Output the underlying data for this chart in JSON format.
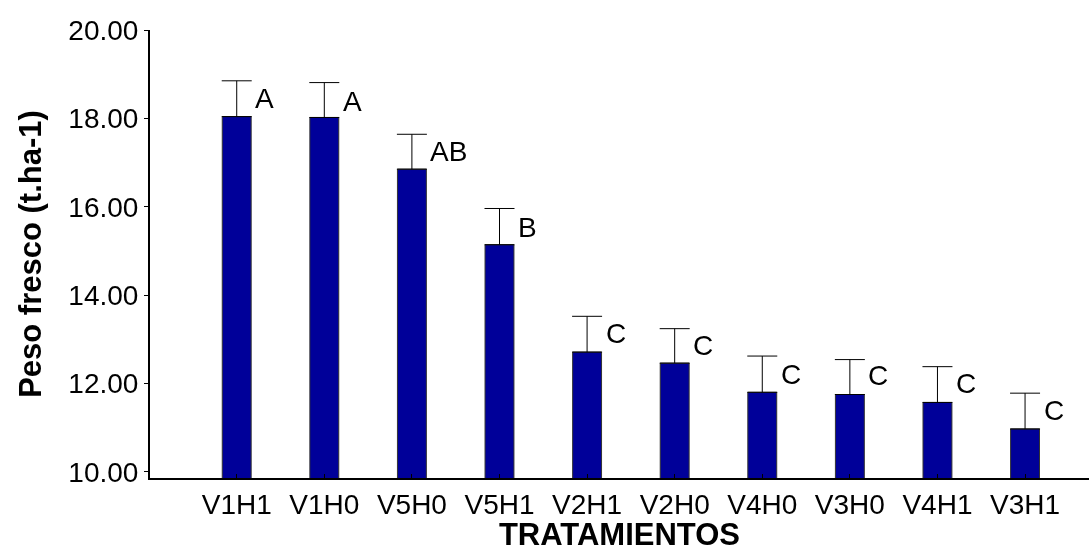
{
  "chart_data": {
    "type": "bar",
    "xlabel": "TRATAMIENTOS",
    "ylabel": "Peso fresco (t.ha-1)",
    "categories": [
      "V1H1",
      "V1H0",
      "V5H0",
      "V5H1",
      "V2H1",
      "V2H0",
      "V4H0",
      "V3H0",
      "V4H1",
      "V3H1"
    ],
    "values": [
      18.04,
      18.02,
      16.85,
      15.14,
      12.71,
      12.46,
      11.8,
      11.75,
      11.57,
      10.97
    ],
    "color": "#000099",
    "errors": [
      [
        18.04,
        18.85
      ],
      [
        18.02,
        18.81
      ],
      [
        16.85,
        17.64
      ],
      [
        15.14,
        15.96
      ],
      [
        12.71,
        13.52
      ],
      [
        12.46,
        13.24
      ],
      [
        11.8,
        12.62
      ],
      [
        11.75,
        12.54
      ],
      [
        11.57,
        12.38
      ],
      [
        10.97,
        11.78
      ]
    ],
    "ylim": [
      9.86,
      20
    ],
    "yticks": [
      {
        "value": 10,
        "label": "10.00"
      },
      {
        "value": 12,
        "label": "12.00"
      },
      {
        "value": 14,
        "label": "14.00"
      },
      {
        "value": 16,
        "label": "16.00"
      },
      {
        "value": 18,
        "label": "18.00"
      },
      {
        "value": 20,
        "label": "20.00"
      }
    ],
    "annotations": [
      {
        "text": "A",
        "x": "V1H1",
        "y": 18.44
      },
      {
        "text": "A",
        "x": "V1H0",
        "y": 18.38
      },
      {
        "text": "AB",
        "x": "V5H0",
        "y": 17.25
      },
      {
        "text": "B",
        "x": "V5H1",
        "y": 15.52
      },
      {
        "text": "C",
        "x": "V2H1",
        "y": 13.12
      },
      {
        "text": "C",
        "x": "V2H0",
        "y": 12.87
      },
      {
        "text": "C",
        "x": "V4H0",
        "y": 12.21
      },
      {
        "text": "C",
        "x": "V3H0",
        "y": 12.17
      },
      {
        "text": "C",
        "x": "V4H1",
        "y": 11.99
      },
      {
        "text": "C",
        "x": "V3H1",
        "y": 11.39
      }
    ]
  }
}
